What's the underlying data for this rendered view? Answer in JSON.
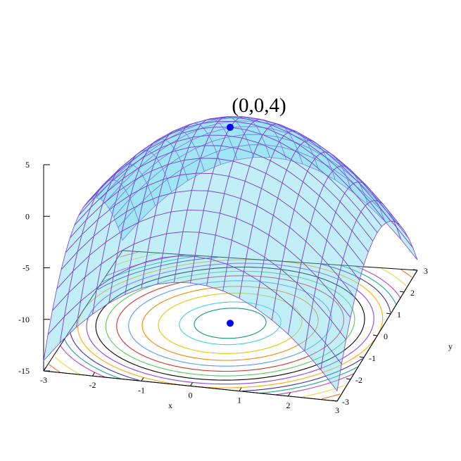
{
  "chart_data": {
    "type": "surface3d",
    "function": "z = 4 - x^2 - y^2",
    "x": [
      -3,
      3
    ],
    "y": [
      -3,
      3
    ],
    "xlim": [
      -3,
      3
    ],
    "ylim": [
      -3,
      3
    ],
    "zlim": [
      -15,
      5
    ],
    "grid_n": 19,
    "xticks": [
      "-3",
      "-2",
      "-1",
      "0",
      "1",
      "2",
      "3"
    ],
    "yticks": [
      "-3",
      "-2",
      "-1",
      "0",
      "1",
      "2",
      "3"
    ],
    "zticks": [
      "-15",
      "-10",
      "-5",
      "0",
      "5"
    ],
    "xlabel": "x",
    "ylabel": "y",
    "zlabel": "",
    "contour_levels": [
      3.5,
      3,
      2,
      1,
      0,
      -1,
      -2,
      -3,
      -4,
      -5,
      -6,
      -7,
      -8,
      -10,
      -12,
      -14
    ],
    "contour_colors": [
      "#119977",
      "#44ccee",
      "#ddcc00",
      "#ee8800",
      "#5599ff",
      "#cc3333",
      "#55cc55",
      "#000000",
      "#8844ee",
      "#ffaa00",
      "#3333aa",
      "#11aa99",
      "#bb44bb",
      "#dddd44",
      "#ee7722",
      "#6677ff"
    ],
    "point": {
      "x": 0,
      "y": 0,
      "z": 4,
      "label": "(0,0,4)"
    },
    "colors": {
      "surface_fill": "#77d9ee",
      "mesh_line": "#7b3fdd",
      "point": "#0000ff"
    }
  }
}
